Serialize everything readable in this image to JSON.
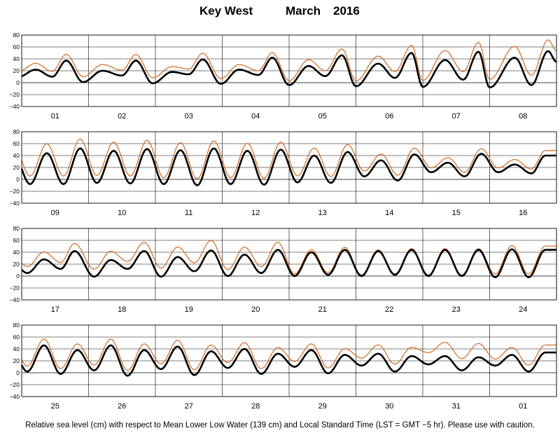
{
  "title": {
    "station": "Key West",
    "month": "March",
    "year": "2016"
  },
  "caption": "Relative sea level (cm) with respect to Mean Lower Low Water (139 cm) and Local Standard Time (LST = GMT −5 hr).  Please use with caution.",
  "colors": {
    "observed": "#000000",
    "predicted": "#d2691e",
    "grid": "#000000"
  },
  "chart_data": [
    {
      "type": "line",
      "panel": 1,
      "yticks": [
        "80",
        "60",
        "40",
        "20",
        "0",
        "−20",
        "−40"
      ],
      "ylim": [
        -40,
        80
      ],
      "days": [
        "01",
        "02",
        "03",
        "04",
        "05",
        "06",
        "07",
        "08"
      ],
      "grid": true,
      "tide": [
        {
          "hw": [
            [
              5,
              22
            ],
            [
              16,
              37
            ]
          ],
          "lw": [
            [
              11,
              10
            ],
            [
              22,
              1
            ]
          ]
        },
        {
          "hw": [
            [
              5,
              20
            ],
            [
              17,
              37
            ]
          ],
          "lw": [
            [
              12,
              12
            ],
            [
              23,
              -1
            ]
          ]
        },
        {
          "hw": [
            [
              6,
              18
            ],
            [
              17,
              39
            ]
          ],
          "lw": [
            [
              12,
              14
            ],
            [
              23.5,
              -2
            ]
          ]
        },
        {
          "hw": [
            [
              6,
              22
            ],
            [
              18,
              42
            ]
          ],
          "lw": [
            [
              13,
              13
            ],
            [
              24,
              -4
            ]
          ]
        },
        {
          "hw": [
            [
              7,
              28
            ],
            [
              19,
              46
            ]
          ],
          "lw": [
            [
              13,
              11
            ],
            [
              24,
              -6
            ]
          ]
        },
        {
          "hw": [
            [
              8,
              32
            ],
            [
              20,
              50
            ]
          ],
          "lw": [
            [
              14,
              8
            ],
            [
              24,
              -7
            ]
          ]
        },
        {
          "hw": [
            [
              8,
              38
            ],
            [
              20,
              52
            ]
          ],
          "lw": [
            [
              14.5,
              5
            ],
            [
              24,
              -8
            ]
          ]
        },
        {
          "hw": [
            [
              9,
              42
            ],
            [
              21,
              53
            ]
          ],
          "lw": [
            [
              15,
              -4
            ],
            [
              24,
              35
            ]
          ]
        }
      ],
      "pred_offset": [
        10,
        10,
        10,
        8,
        10,
        12,
        15,
        18
      ]
    },
    {
      "type": "line",
      "panel": 2,
      "yticks": [
        "80",
        "60",
        "40",
        "20",
        "0",
        "−20",
        "−40"
      ],
      "ylim": [
        -40,
        80
      ],
      "days": [
        "09",
        "10",
        "11",
        "12",
        "13",
        "14",
        "15",
        "16"
      ],
      "grid": true,
      "tide": [
        {
          "hw": [
            [
              9,
              44
            ],
            [
              21,
              52
            ]
          ],
          "lw": [
            [
              3,
              -8
            ],
            [
              15,
              -8
            ]
          ]
        },
        {
          "hw": [
            [
              9,
              48
            ],
            [
              21,
              51
            ]
          ],
          "lw": [
            [
              3,
              -6
            ],
            [
              15,
              -7
            ]
          ]
        },
        {
          "hw": [
            [
              9,
              49
            ],
            [
              21,
              52
            ]
          ],
          "lw": [
            [
              3,
              -8
            ],
            [
              15,
              -10
            ]
          ]
        },
        {
          "hw": [
            [
              9,
              48
            ],
            [
              21,
              50
            ]
          ],
          "lw": [
            [
              3,
              -8
            ],
            [
              15,
              -9
            ]
          ]
        },
        {
          "hw": [
            [
              9,
              40
            ],
            [
              21,
              46
            ]
          ],
          "lw": [
            [
              3,
              -5
            ],
            [
              15,
              -6
            ]
          ]
        },
        {
          "hw": [
            [
              9,
              32
            ],
            [
              21,
              42
            ]
          ],
          "lw": [
            [
              3,
              5
            ],
            [
              15,
              -2
            ]
          ]
        },
        {
          "hw": [
            [
              9,
              28
            ],
            [
              21,
              43
            ]
          ],
          "lw": [
            [
              3,
              12
            ],
            [
              15,
              5
            ]
          ]
        },
        {
          "hw": [
            [
              9,
              25
            ],
            [
              20,
              40
            ]
          ],
          "lw": [
            [
              3,
              12
            ],
            [
              15,
              10
            ]
          ]
        }
      ],
      "pred_offset": [
        15,
        14,
        12,
        12,
        12,
        10,
        8,
        8
      ]
    },
    {
      "type": "line",
      "panel": 3,
      "yticks": [
        "80",
        "60",
        "40",
        "20",
        "0",
        "−20",
        "−40"
      ],
      "ylim": [
        -40,
        80
      ],
      "days": [
        "17",
        "18",
        "19",
        "20",
        "21",
        "22",
        "23",
        "24"
      ],
      "grid": true,
      "tide": [
        {
          "hw": [
            [
              8,
              28
            ],
            [
              19,
              42
            ]
          ],
          "lw": [
            [
              2,
              5
            ],
            [
              14,
              12
            ]
          ]
        },
        {
          "hw": [
            [
              8,
              27
            ],
            [
              20,
              42
            ]
          ],
          "lw": [
            [
              2,
              -1
            ],
            [
              14,
              12
            ]
          ]
        },
        {
          "hw": [
            [
              8,
              32
            ],
            [
              20,
              43
            ]
          ],
          "lw": [
            [
              2,
              -1
            ],
            [
              14,
              8
            ]
          ]
        },
        {
          "hw": [
            [
              8,
              36
            ],
            [
              20,
              44
            ]
          ],
          "lw": [
            [
              2,
              0
            ],
            [
              14,
              5
            ]
          ]
        },
        {
          "hw": [
            [
              8,
              40
            ],
            [
              20,
              44
            ]
          ],
          "lw": [
            [
              2,
              0
            ],
            [
              14,
              2
            ]
          ]
        },
        {
          "hw": [
            [
              8,
              42
            ],
            [
              20,
              44
            ]
          ],
          "lw": [
            [
              2,
              0
            ],
            [
              14,
              2
            ]
          ]
        },
        {
          "hw": [
            [
              8,
              44
            ],
            [
              20,
              44
            ]
          ],
          "lw": [
            [
              2,
              0
            ],
            [
              14,
              0
            ]
          ]
        },
        {
          "hw": [
            [
              8,
              45
            ],
            [
              20,
              44
            ]
          ],
          "lw": [
            [
              2,
              -2
            ],
            [
              14,
              -2
            ]
          ]
        }
      ],
      "pred_offset": [
        12,
        14,
        16,
        12,
        4,
        2,
        2,
        6
      ]
    },
    {
      "type": "line",
      "panel": 4,
      "yticks": [
        "80",
        "60",
        "40",
        "20",
        "0",
        "−20",
        "−40"
      ],
      "ylim": [
        -40,
        80
      ],
      "days": [
        "25",
        "26",
        "27",
        "28",
        "29",
        "30",
        "31",
        "01"
      ],
      "grid": true,
      "tide": [
        {
          "hw": [
            [
              8,
              46
            ],
            [
              20,
              38
            ]
          ],
          "lw": [
            [
              2,
              2
            ],
            [
              14,
              -2
            ]
          ]
        },
        {
          "hw": [
            [
              8,
              46
            ],
            [
              20,
              38
            ]
          ],
          "lw": [
            [
              2,
              4
            ],
            [
              14,
              -5
            ]
          ]
        },
        {
          "hw": [
            [
              8,
              44
            ],
            [
              20,
              36
            ]
          ],
          "lw": [
            [
              2,
              6
            ],
            [
              14,
              -4
            ]
          ]
        },
        {
          "hw": [
            [
              8,
              40
            ],
            [
              20,
              32
            ]
          ],
          "lw": [
            [
              2,
              8
            ],
            [
              14,
              -2
            ]
          ]
        },
        {
          "hw": [
            [
              8,
              38
            ],
            [
              20,
              30
            ]
          ],
          "lw": [
            [
              2,
              10
            ],
            [
              14,
              -1
            ]
          ]
        },
        {
          "hw": [
            [
              8,
              32
            ],
            [
              20,
              28
            ]
          ],
          "lw": [
            [
              2,
              12
            ],
            [
              14,
              2
            ]
          ]
        },
        {
          "hw": [
            [
              8,
              28
            ],
            [
              20,
              26
            ]
          ],
          "lw": [
            [
              2,
              14
            ],
            [
              14,
              4
            ]
          ]
        },
        {
          "hw": [
            [
              8,
              30
            ],
            [
              20,
              34
            ]
          ],
          "lw": [
            [
              2,
              12
            ],
            [
              14,
              2
            ]
          ]
        }
      ],
      "pred_offset": [
        10,
        10,
        10,
        10,
        10,
        14,
        22,
        12
      ]
    }
  ]
}
